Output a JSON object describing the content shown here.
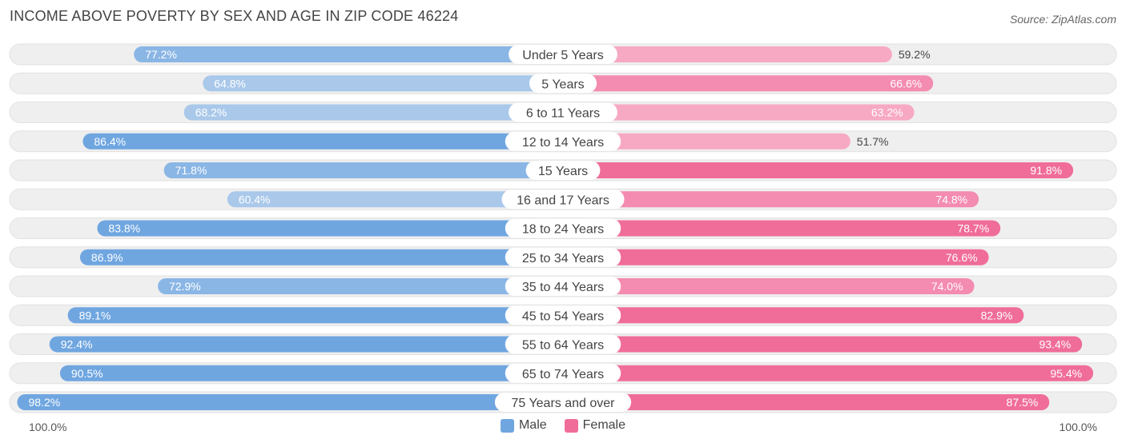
{
  "title": "INCOME ABOVE POVERTY BY SEX AND AGE IN ZIP CODE 46224",
  "source": "Source: ZipAtlas.com",
  "axis": {
    "left_label": "100.0%",
    "right_label": "100.0%"
  },
  "legend": {
    "male": "Male",
    "female": "Female"
  },
  "colors": {
    "male_dark": "#6fa6e0",
    "male_light": "#a9c8ea",
    "female_dark": "#f06d99",
    "female_light": "#f7a9c3",
    "track": "#efefef"
  },
  "chart_data": {
    "type": "bar",
    "orientation": "horizontal-diverging",
    "xlim": [
      0,
      100
    ],
    "categories": [
      "Under 5 Years",
      "5 Years",
      "6 to 11 Years",
      "12 to 14 Years",
      "15 Years",
      "16 and 17 Years",
      "18 to 24 Years",
      "25 to 34 Years",
      "35 to 44 Years",
      "45 to 54 Years",
      "55 to 64 Years",
      "65 to 74 Years",
      "75 Years and over"
    ],
    "series": [
      {
        "name": "Male",
        "values": [
          77.2,
          64.8,
          68.2,
          86.4,
          71.8,
          60.4,
          83.8,
          86.9,
          72.9,
          89.1,
          92.4,
          90.5,
          98.2
        ]
      },
      {
        "name": "Female",
        "values": [
          59.2,
          66.6,
          63.2,
          51.7,
          91.8,
          74.8,
          78.7,
          76.6,
          74.0,
          82.9,
          93.4,
          95.4,
          87.5
        ]
      }
    ],
    "value_labels": {
      "male": [
        "77.2%",
        "64.8%",
        "68.2%",
        "86.4%",
        "71.8%",
        "60.4%",
        "83.8%",
        "86.9%",
        "72.9%",
        "89.1%",
        "92.4%",
        "90.5%",
        "98.2%"
      ],
      "female": [
        "59.2%",
        "66.6%",
        "63.2%",
        "51.7%",
        "91.8%",
        "74.8%",
        "78.7%",
        "76.6%",
        "74.0%",
        "82.9%",
        "93.4%",
        "95.4%",
        "87.5%"
      ]
    },
    "legend_position": "bottom-center"
  }
}
